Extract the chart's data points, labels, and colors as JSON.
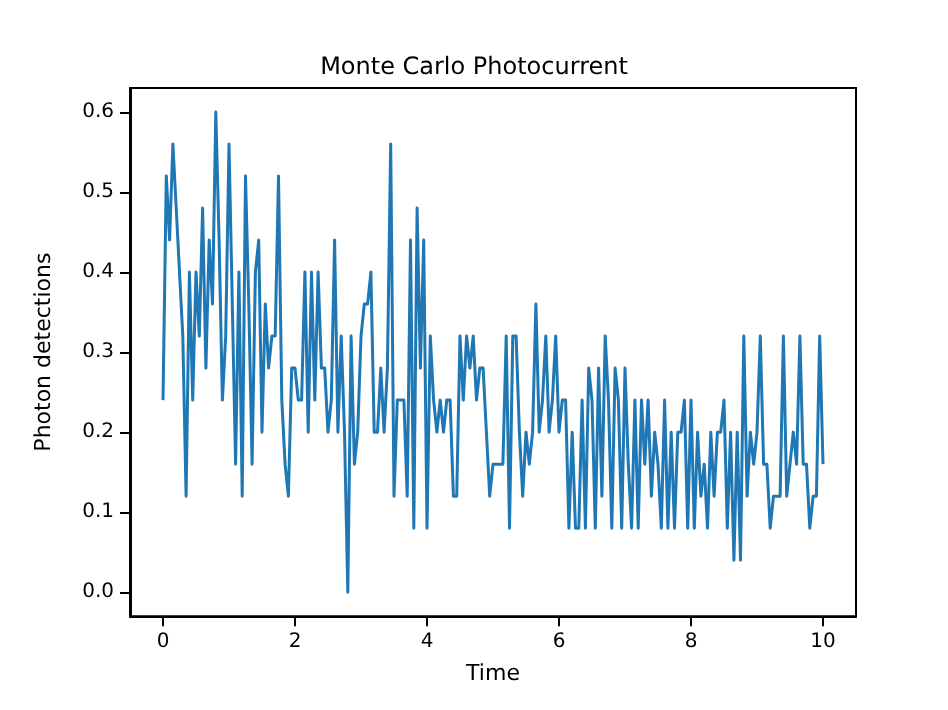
{
  "chart_data": {
    "type": "line",
    "title": "Monte Carlo Photocurrent",
    "xlabel": "Time",
    "ylabel": "Photon detections",
    "x": [
      0,
      0.05,
      0.1,
      0.15,
      0.2,
      0.25,
      0.3,
      0.35,
      0.4,
      0.45,
      0.5,
      0.55,
      0.6,
      0.65,
      0.7,
      0.75,
      0.8,
      0.85,
      0.9,
      0.95,
      1,
      1.05,
      1.1,
      1.15,
      1.2,
      1.25,
      1.3,
      1.35,
      1.4,
      1.45,
      1.5,
      1.55,
      1.6,
      1.65,
      1.7,
      1.75,
      1.8,
      1.85,
      1.9,
      1.95,
      2,
      2.05,
      2.1,
      2.15,
      2.2,
      2.25,
      2.3,
      2.35,
      2.4,
      2.45,
      2.5,
      2.55,
      2.6,
      2.65,
      2.7,
      2.75,
      2.8,
      2.85,
      2.9,
      2.95,
      3,
      3.05,
      3.1,
      3.15,
      3.2,
      3.25,
      3.3,
      3.35,
      3.4,
      3.45,
      3.5,
      3.55,
      3.6,
      3.65,
      3.7,
      3.75,
      3.8,
      3.85,
      3.9,
      3.95,
      4,
      4.05,
      4.1,
      4.15,
      4.2,
      4.25,
      4.3,
      4.35,
      4.4,
      4.45,
      4.5,
      4.55,
      4.6,
      4.65,
      4.7,
      4.75,
      4.8,
      4.85,
      4.9,
      4.95,
      5,
      5.05,
      5.1,
      5.15,
      5.2,
      5.25,
      5.3,
      5.35,
      5.4,
      5.45,
      5.5,
      5.55,
      5.6,
      5.65,
      5.7,
      5.75,
      5.8,
      5.85,
      5.9,
      5.95,
      6,
      6.05,
      6.1,
      6.15,
      6.2,
      6.25,
      6.3,
      6.35,
      6.4,
      6.45,
      6.5,
      6.55,
      6.6,
      6.65,
      6.7,
      6.75,
      6.8,
      6.85,
      6.9,
      6.95,
      7,
      7.05,
      7.1,
      7.15,
      7.2,
      7.25,
      7.3,
      7.35,
      7.4,
      7.45,
      7.5,
      7.55,
      7.6,
      7.65,
      7.7,
      7.75,
      7.8,
      7.85,
      7.9,
      7.95,
      8,
      8.05,
      8.1,
      8.15,
      8.2,
      8.25,
      8.3,
      8.35,
      8.4,
      8.45,
      8.5,
      8.55,
      8.6,
      8.65,
      8.7,
      8.75,
      8.8,
      8.85,
      8.9,
      8.95,
      9,
      9.05,
      9.1,
      9.15,
      9.2,
      9.25,
      9.3,
      9.35,
      9.4,
      9.45,
      9.5,
      9.55,
      9.6,
      9.65,
      9.7,
      9.75,
      9.8,
      9.85,
      9.9,
      9.95,
      10
    ],
    "series": [
      {
        "color": "#1f77b4",
        "values": [
          0.24,
          0.52,
          0.44,
          0.56,
          0.48,
          0.4,
          0.32,
          0.12,
          0.4,
          0.24,
          0.4,
          0.32,
          0.48,
          0.28,
          0.44,
          0.36,
          0.6,
          0.44,
          0.24,
          0.32,
          0.56,
          0.36,
          0.16,
          0.4,
          0.12,
          0.52,
          0.36,
          0.16,
          0.4,
          0.44,
          0.2,
          0.36,
          0.28,
          0.32,
          0.32,
          0.52,
          0.24,
          0.16,
          0.12,
          0.28,
          0.28,
          0.24,
          0.24,
          0.4,
          0.2,
          0.4,
          0.24,
          0.4,
          0.28,
          0.28,
          0.2,
          0.24,
          0.44,
          0.2,
          0.32,
          0.2,
          0.0,
          0.32,
          0.16,
          0.2,
          0.32,
          0.36,
          0.36,
          0.4,
          0.2,
          0.2,
          0.28,
          0.2,
          0.28,
          0.56,
          0.12,
          0.24,
          0.24,
          0.24,
          0.12,
          0.44,
          0.08,
          0.48,
          0.28,
          0.44,
          0.08,
          0.32,
          0.24,
          0.2,
          0.24,
          0.2,
          0.24,
          0.24,
          0.12,
          0.12,
          0.32,
          0.24,
          0.32,
          0.28,
          0.32,
          0.24,
          0.28,
          0.28,
          0.2,
          0.12,
          0.16,
          0.16,
          0.16,
          0.16,
          0.32,
          0.08,
          0.32,
          0.32,
          0.2,
          0.12,
          0.2,
          0.16,
          0.2,
          0.36,
          0.2,
          0.24,
          0.32,
          0.2,
          0.24,
          0.32,
          0.2,
          0.24,
          0.24,
          0.08,
          0.2,
          0.08,
          0.08,
          0.24,
          0.08,
          0.28,
          0.24,
          0.08,
          0.28,
          0.12,
          0.32,
          0.24,
          0.08,
          0.28,
          0.24,
          0.08,
          0.28,
          0.16,
          0.08,
          0.24,
          0.08,
          0.24,
          0.16,
          0.24,
          0.12,
          0.2,
          0.16,
          0.08,
          0.24,
          0.08,
          0.2,
          0.08,
          0.2,
          0.2,
          0.24,
          0.08,
          0.24,
          0.08,
          0.2,
          0.12,
          0.16,
          0.08,
          0.2,
          0.12,
          0.2,
          0.2,
          0.24,
          0.08,
          0.2,
          0.04,
          0.2,
          0.04,
          0.32,
          0.12,
          0.2,
          0.16,
          0.2,
          0.32,
          0.16,
          0.16,
          0.08,
          0.12,
          0.12,
          0.12,
          0.32,
          0.12,
          0.16,
          0.2,
          0.16,
          0.32,
          0.16,
          0.16,
          0.08,
          0.12,
          0.12,
          0.32,
          0.16
        ]
      }
    ],
    "xlim": [
      -0.5,
      10.5
    ],
    "xticks": [
      0,
      2,
      4,
      6,
      8,
      10
    ],
    "ylim": [
      -0.03,
      0.63
    ],
    "yticks": [
      {
        "value": 0,
        "label": "0.0"
      },
      {
        "value": 0.1,
        "label": "0.1"
      },
      {
        "value": 0.2,
        "label": "0.2"
      },
      {
        "value": 0.3,
        "label": "0.3"
      },
      {
        "value": 0.4,
        "label": "0.4"
      },
      {
        "value": 0.5,
        "label": "0.5"
      },
      {
        "value": 0.6,
        "label": "0.6"
      }
    ],
    "marker": "none",
    "line_style": "solid"
  }
}
